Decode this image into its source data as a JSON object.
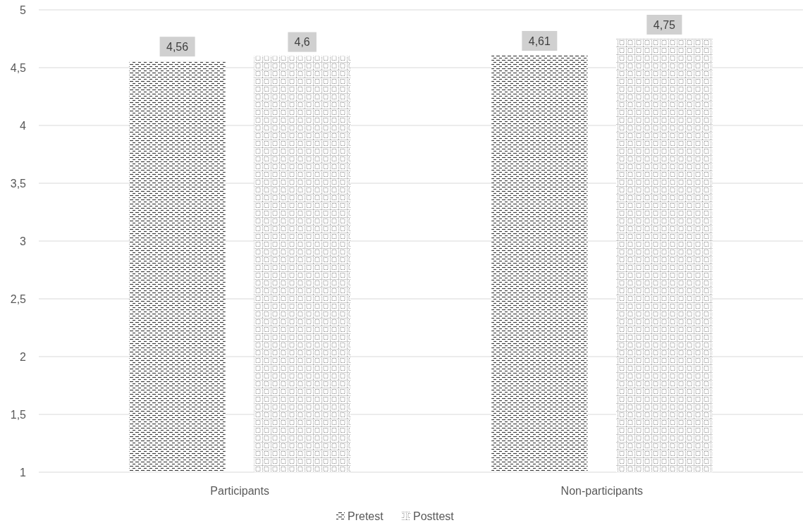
{
  "chart_data": {
    "type": "bar",
    "categories": [
      "Participants",
      "Non-participants"
    ],
    "series": [
      {
        "name": "Pretest",
        "color": "#404040",
        "values": [
          4.56,
          4.61
        ],
        "value_labels": [
          "4,56",
          "4,61"
        ]
      },
      {
        "name": "Posttest",
        "color": "#7f7f7f",
        "values": [
          4.6,
          4.75
        ],
        "value_labels": [
          "4,6",
          "4,75"
        ]
      }
    ],
    "ylim": [
      1,
      5
    ],
    "yticks": [
      1,
      {
        "value": 1.5,
        "label": "1,5"
      },
      2,
      {
        "value": 2.5,
        "label": "2,5"
      },
      3,
      {
        "value": 3.5,
        "label": "3,5"
      },
      4,
      {
        "value": 4.5,
        "label": "4,5"
      },
      5
    ],
    "grid": "y",
    "legend": "bottom"
  }
}
